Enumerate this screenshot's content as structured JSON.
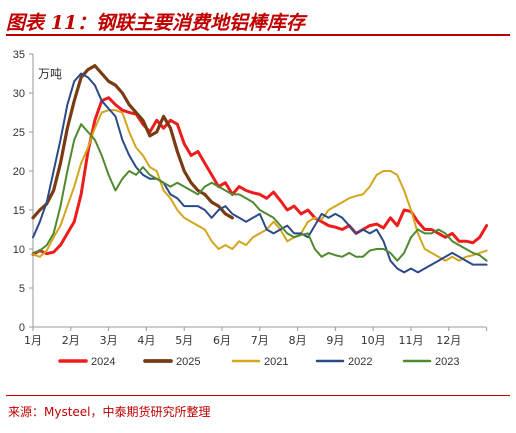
{
  "header": {
    "title": "图表 11：钢联主要消费地铝棒库存"
  },
  "footer": {
    "source": "来源：Mysteel，中泰期货研究所整理"
  },
  "chart_data": {
    "type": "line",
    "title": "",
    "ylabel": "万吨",
    "xlabel": "",
    "ylim": [
      0,
      35
    ],
    "yticks": [
      0,
      5,
      10,
      15,
      20,
      25,
      30,
      35
    ],
    "grid": false,
    "legend_position": "bottom",
    "x_months": [
      "1月",
      "2月",
      "3月",
      "4月",
      "5月",
      "6月",
      "7月",
      "8月",
      "9月",
      "10月",
      "11月",
      "12月"
    ],
    "series": [
      {
        "name": "2024",
        "color": "#ee1c1c",
        "width": 3,
        "x": [
          0,
          0.2,
          0.4,
          0.6,
          0.8,
          1.0,
          1.2,
          1.4,
          1.6,
          1.8,
          2.0,
          2.2,
          2.4,
          2.6,
          2.8,
          3.0,
          3.2,
          3.4,
          3.6,
          3.8,
          4.0,
          4.2,
          4.4,
          4.6,
          4.8,
          5.0,
          5.2,
          5.4,
          5.6,
          5.8,
          6.0,
          6.2,
          6.4,
          6.6,
          6.8,
          7.0,
          7.2,
          7.4,
          7.6,
          7.8,
          8.0,
          8.2,
          8.4,
          8.6,
          8.8,
          9.0,
          9.2,
          9.4,
          9.6,
          9.8,
          10.0,
          10.2,
          10.4,
          10.6,
          10.8,
          11.0,
          11.2,
          11.4,
          11.6,
          11.8,
          12.0,
          12.2,
          12.4,
          12.6,
          12.8,
          13.0,
          13.2
        ],
        "values": [
          9.3,
          9.8,
          9.4,
          9.6,
          10.5,
          12.0,
          13.5,
          17.0,
          22.5,
          26.5,
          29.0,
          29.4,
          28.5,
          27.8,
          27.5,
          27.3,
          26.0,
          25.0,
          26.5,
          25.5,
          26.5,
          26.0,
          23.5,
          22.0,
          22.5,
          21.0,
          19.5,
          18.0,
          18.5,
          17.0,
          18.0,
          17.5,
          17.2,
          17.0,
          16.5,
          17.3,
          16.2,
          15.0,
          15.5,
          14.5,
          15.0,
          14.0,
          13.5,
          13.0,
          12.8,
          12.5,
          13.0,
          12.0,
          12.5,
          13.0,
          13.2,
          12.7,
          14.0,
          13.0,
          15.0,
          14.8,
          13.5,
          12.5,
          12.5,
          12.0,
          11.5,
          12.0,
          11.0,
          11.0,
          10.8,
          11.5,
          13.0
        ]
      },
      {
        "name": "2025",
        "color": "#7a3b12",
        "width": 3.2,
        "x": [
          0,
          0.2,
          0.4,
          0.6,
          0.8,
          1.0,
          1.2,
          1.4,
          1.6,
          1.8,
          2.0,
          2.2,
          2.4,
          2.6,
          2.8,
          3.0,
          3.2,
          3.4,
          3.6,
          3.8,
          4.0,
          4.2,
          4.4,
          4.6,
          4.8,
          5.0,
          5.2,
          5.4,
          5.6,
          5.8
        ],
        "values": [
          14.0,
          15.0,
          15.8,
          17.5,
          21.0,
          25.5,
          29.0,
          32.0,
          33.0,
          33.5,
          32.5,
          31.5,
          31.0,
          30.0,
          28.5,
          27.5,
          26.5,
          24.5,
          25.0,
          27.0,
          25.5,
          22.5,
          20.0,
          18.5,
          17.5,
          17.0,
          16.0,
          15.5,
          14.5,
          14.0
        ]
      },
      {
        "name": "2021",
        "color": "#d4a51e",
        "width": 2,
        "x": [
          0,
          0.2,
          0.4,
          0.6,
          0.8,
          1.0,
          1.2,
          1.4,
          1.6,
          1.8,
          2.0,
          2.2,
          2.4,
          2.6,
          2.8,
          3.0,
          3.2,
          3.4,
          3.6,
          3.8,
          4.0,
          4.2,
          4.4,
          4.6,
          4.8,
          5.0,
          5.2,
          5.4,
          5.6,
          5.8,
          6.0,
          6.2,
          6.4,
          6.6,
          6.8,
          7.0,
          7.2,
          7.4,
          7.6,
          7.8,
          8.0,
          8.2,
          8.4,
          8.6,
          8.8,
          9.0,
          9.2,
          9.4,
          9.6,
          9.8,
          10.0,
          10.2,
          10.4,
          10.6,
          10.8,
          11.0,
          11.2,
          11.4,
          11.6,
          11.8,
          12.0,
          12.2,
          12.4,
          12.6,
          12.8,
          13.0,
          13.2
        ],
        "values": [
          9.3,
          9.0,
          9.8,
          11.5,
          13.0,
          15.5,
          18.0,
          21.0,
          23.0,
          25.5,
          27.5,
          27.8,
          27.8,
          27.5,
          25.0,
          23.0,
          22.0,
          20.5,
          20.0,
          17.5,
          16.5,
          15.0,
          14.0,
          13.5,
          13.0,
          12.5,
          11.0,
          10.0,
          10.5,
          10.0,
          11.0,
          10.5,
          11.5,
          12.0,
          12.5,
          13.5,
          12.5,
          11.0,
          11.5,
          12.0,
          13.5,
          14.0,
          13.8,
          15.0,
          15.5,
          16.0,
          16.5,
          16.8,
          17.0,
          18.0,
          19.5,
          20.0,
          20.0,
          19.5,
          17.5,
          15.0,
          12.0,
          10.0,
          9.5,
          9.0,
          8.5,
          9.0,
          8.5,
          9.0,
          9.2,
          9.5,
          9.8
        ]
      },
      {
        "name": "2022",
        "color": "#2b4a8a",
        "width": 2,
        "x": [
          0,
          0.2,
          0.4,
          0.6,
          0.8,
          1.0,
          1.2,
          1.4,
          1.6,
          1.8,
          2.0,
          2.2,
          2.4,
          2.6,
          2.8,
          3.0,
          3.2,
          3.4,
          3.6,
          3.8,
          4.0,
          4.2,
          4.4,
          4.6,
          4.8,
          5.0,
          5.2,
          5.4,
          5.6,
          5.8,
          6.0,
          6.2,
          6.4,
          6.6,
          6.8,
          7.0,
          7.2,
          7.4,
          7.6,
          7.8,
          8.0,
          8.2,
          8.4,
          8.6,
          8.8,
          9.0,
          9.2,
          9.4,
          9.6,
          9.8,
          10.0,
          10.2,
          10.4,
          10.6,
          10.8,
          11.0,
          11.2,
          11.4,
          11.6,
          11.8,
          12.0,
          12.2,
          12.4,
          12.6,
          12.8,
          13.0,
          13.2
        ],
        "values": [
          11.5,
          13.5,
          16.0,
          20.0,
          24.0,
          28.5,
          31.5,
          32.5,
          32.0,
          31.0,
          29.0,
          28.0,
          27.0,
          24.0,
          22.0,
          20.5,
          19.5,
          19.0,
          19.0,
          18.5,
          17.0,
          16.5,
          15.5,
          15.5,
          15.5,
          15.0,
          14.0,
          15.0,
          15.5,
          14.5,
          14.0,
          13.5,
          14.0,
          14.5,
          12.5,
          12.0,
          12.5,
          13.0,
          12.0,
          12.0,
          11.5,
          13.0,
          14.5,
          14.0,
          14.5,
          14.0,
          13.0,
          12.0,
          12.5,
          12.0,
          12.5,
          11.0,
          8.5,
          7.5,
          7.0,
          7.5,
          7.0,
          7.5,
          8.0,
          8.5,
          9.0,
          9.5,
          9.0,
          8.5,
          8.0,
          8.0,
          8.0
        ]
      },
      {
        "name": "2023",
        "color": "#4f8a30",
        "width": 2,
        "x": [
          0,
          0.2,
          0.4,
          0.6,
          0.8,
          1.0,
          1.2,
          1.4,
          1.6,
          1.8,
          2.0,
          2.2,
          2.4,
          2.6,
          2.8,
          3.0,
          3.2,
          3.4,
          3.6,
          3.8,
          4.0,
          4.2,
          4.4,
          4.6,
          4.8,
          5.0,
          5.2,
          5.4,
          5.6,
          5.8,
          6.0,
          6.2,
          6.4,
          6.6,
          6.8,
          7.0,
          7.2,
          7.4,
          7.6,
          7.8,
          8.0,
          8.2,
          8.4,
          8.6,
          8.8,
          9.0,
          9.2,
          9.4,
          9.6,
          9.8,
          10.0,
          10.2,
          10.4,
          10.6,
          10.8,
          11.0,
          11.2,
          11.4,
          11.6,
          11.8,
          12.0,
          12.2,
          12.4,
          12.6,
          12.8,
          13.0,
          13.2
        ],
        "values": [
          9.5,
          9.8,
          10.5,
          12.0,
          15.5,
          20.0,
          24.0,
          26.0,
          25.0,
          24.0,
          22.0,
          19.5,
          17.5,
          19.0,
          20.0,
          19.5,
          20.5,
          19.5,
          19.0,
          18.5,
          18.0,
          18.5,
          18.0,
          17.5,
          17.0,
          18.0,
          18.5,
          18.0,
          17.5,
          17.0,
          17.0,
          16.5,
          16.0,
          15.0,
          14.5,
          14.0,
          13.0,
          12.0,
          11.5,
          11.8,
          12.0,
          10.0,
          9.0,
          9.5,
          9.2,
          9.0,
          9.5,
          9.0,
          9.0,
          9.8,
          10.0,
          10.0,
          9.5,
          8.5,
          9.5,
          11.5,
          12.5,
          12.0,
          12.0,
          12.5,
          12.0,
          11.0,
          10.5,
          10.0,
          9.5,
          9.2,
          8.5
        ]
      }
    ]
  }
}
